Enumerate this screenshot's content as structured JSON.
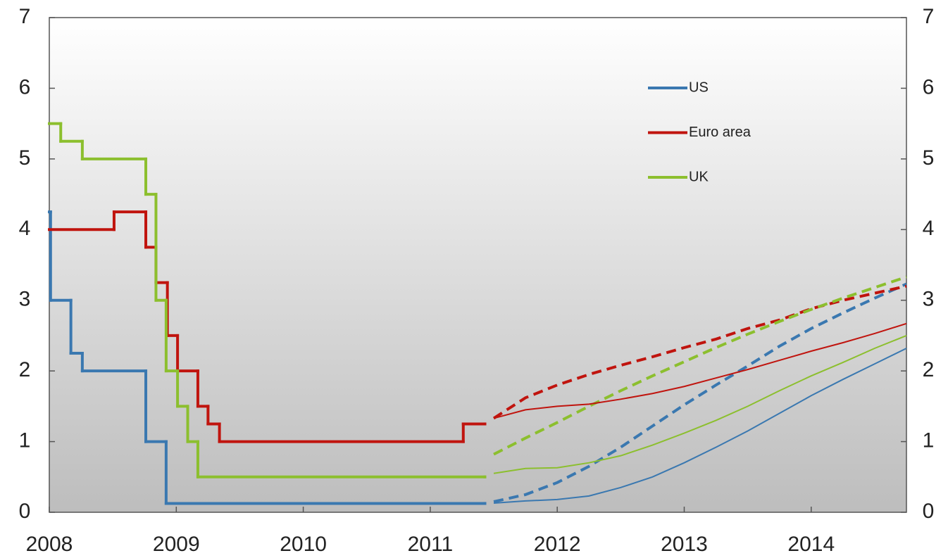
{
  "chart_data": {
    "type": "line",
    "xlim": [
      2008,
      2014.75
    ],
    "xticks": [
      2008,
      2009,
      2010,
      2011,
      2012,
      2013,
      2014
    ],
    "ylim": [
      0,
      7
    ],
    "yticks": [
      0,
      1,
      2,
      3,
      4,
      5,
      6,
      7
    ],
    "y2lim": [
      0,
      7
    ],
    "y2ticks": [
      0,
      1,
      2,
      3,
      4,
      5,
      6,
      7
    ],
    "legend": "upper right",
    "series": [
      {
        "name": "US",
        "color": "#3a78b0",
        "style": "step",
        "x": [
          2008.0,
          2008.01,
          2008.17,
          2008.26,
          2008.76,
          2008.92,
          2011.43
        ],
        "values": [
          4.25,
          3.0,
          2.25,
          2.0,
          1.0,
          0.125,
          0.125
        ]
      },
      {
        "name": "Euro area",
        "color": "#c0140e",
        "style": "step",
        "x": [
          2008.0,
          2008.51,
          2008.76,
          2008.84,
          2008.93,
          2009.01,
          2009.17,
          2009.25,
          2009.34,
          2011.26,
          2011.43
        ],
        "values": [
          4.0,
          4.25,
          3.75,
          3.25,
          2.5,
          2.0,
          1.5,
          1.25,
          1.0,
          1.25,
          1.25
        ]
      },
      {
        "name": "UK",
        "color": "#8cbf2e",
        "style": "step",
        "x": [
          2008.0,
          2008.09,
          2008.26,
          2008.76,
          2008.84,
          2008.92,
          2009.01,
          2009.09,
          2009.17,
          2011.43
        ],
        "values": [
          5.5,
          5.25,
          5.0,
          4.5,
          3.0,
          2.0,
          1.5,
          1.0,
          0.5,
          0.5
        ]
      },
      {
        "color": "#3a78b0",
        "style": "dashed",
        "x": [
          2011.5,
          2011.75,
          2012,
          2012.25,
          2012.5,
          2012.75,
          2013,
          2013.25,
          2013.5,
          2013.75,
          2014,
          2014.25,
          2014.5,
          2014.75
        ],
        "values": [
          0.15,
          0.25,
          0.42,
          0.65,
          0.92,
          1.22,
          1.52,
          1.8,
          2.07,
          2.35,
          2.6,
          2.82,
          3.03,
          3.23
        ]
      },
      {
        "color": "#c0140e",
        "style": "dashed",
        "x": [
          2011.5,
          2011.75,
          2012,
          2012.25,
          2012.5,
          2012.75,
          2013,
          2013.25,
          2013.5,
          2013.75,
          2014,
          2014.25,
          2014.5,
          2014.75
        ],
        "values": [
          1.33,
          1.62,
          1.8,
          1.95,
          2.08,
          2.2,
          2.33,
          2.45,
          2.6,
          2.72,
          2.88,
          3.0,
          3.1,
          3.2
        ]
      },
      {
        "color": "#8cbf2e",
        "style": "dashed",
        "x": [
          2011.5,
          2011.75,
          2012,
          2012.25,
          2012.5,
          2012.75,
          2013,
          2013.25,
          2013.5,
          2013.75,
          2014,
          2014.25,
          2014.5,
          2014.75
        ],
        "values": [
          0.82,
          1.05,
          1.27,
          1.5,
          1.72,
          1.93,
          2.13,
          2.33,
          2.52,
          2.7,
          2.87,
          3.03,
          3.18,
          3.33
        ]
      },
      {
        "color": "#3a78b0",
        "style": "thin",
        "x": [
          2011.5,
          2011.75,
          2012,
          2012.25,
          2012.5,
          2012.75,
          2013,
          2013.25,
          2013.5,
          2013.75,
          2014,
          2014.25,
          2014.5,
          2014.75
        ],
        "values": [
          0.13,
          0.16,
          0.18,
          0.23,
          0.35,
          0.5,
          0.7,
          0.92,
          1.15,
          1.4,
          1.65,
          1.88,
          2.1,
          2.32
        ]
      },
      {
        "color": "#c0140e",
        "style": "thin",
        "x": [
          2011.5,
          2011.75,
          2012,
          2012.25,
          2012.5,
          2012.75,
          2013,
          2013.25,
          2013.5,
          2013.75,
          2014,
          2014.25,
          2014.5,
          2014.75
        ],
        "values": [
          1.33,
          1.45,
          1.5,
          1.53,
          1.6,
          1.68,
          1.78,
          1.9,
          2.02,
          2.15,
          2.28,
          2.4,
          2.53,
          2.67
        ]
      },
      {
        "color": "#8cbf2e",
        "style": "thin",
        "x": [
          2011.5,
          2011.75,
          2012,
          2012.25,
          2012.5,
          2012.75,
          2013,
          2013.25,
          2013.5,
          2013.75,
          2014,
          2014.25,
          2014.5,
          2014.75
        ],
        "values": [
          0.55,
          0.62,
          0.63,
          0.7,
          0.8,
          0.95,
          1.12,
          1.3,
          1.5,
          1.72,
          1.93,
          2.12,
          2.32,
          2.5
        ]
      }
    ]
  }
}
